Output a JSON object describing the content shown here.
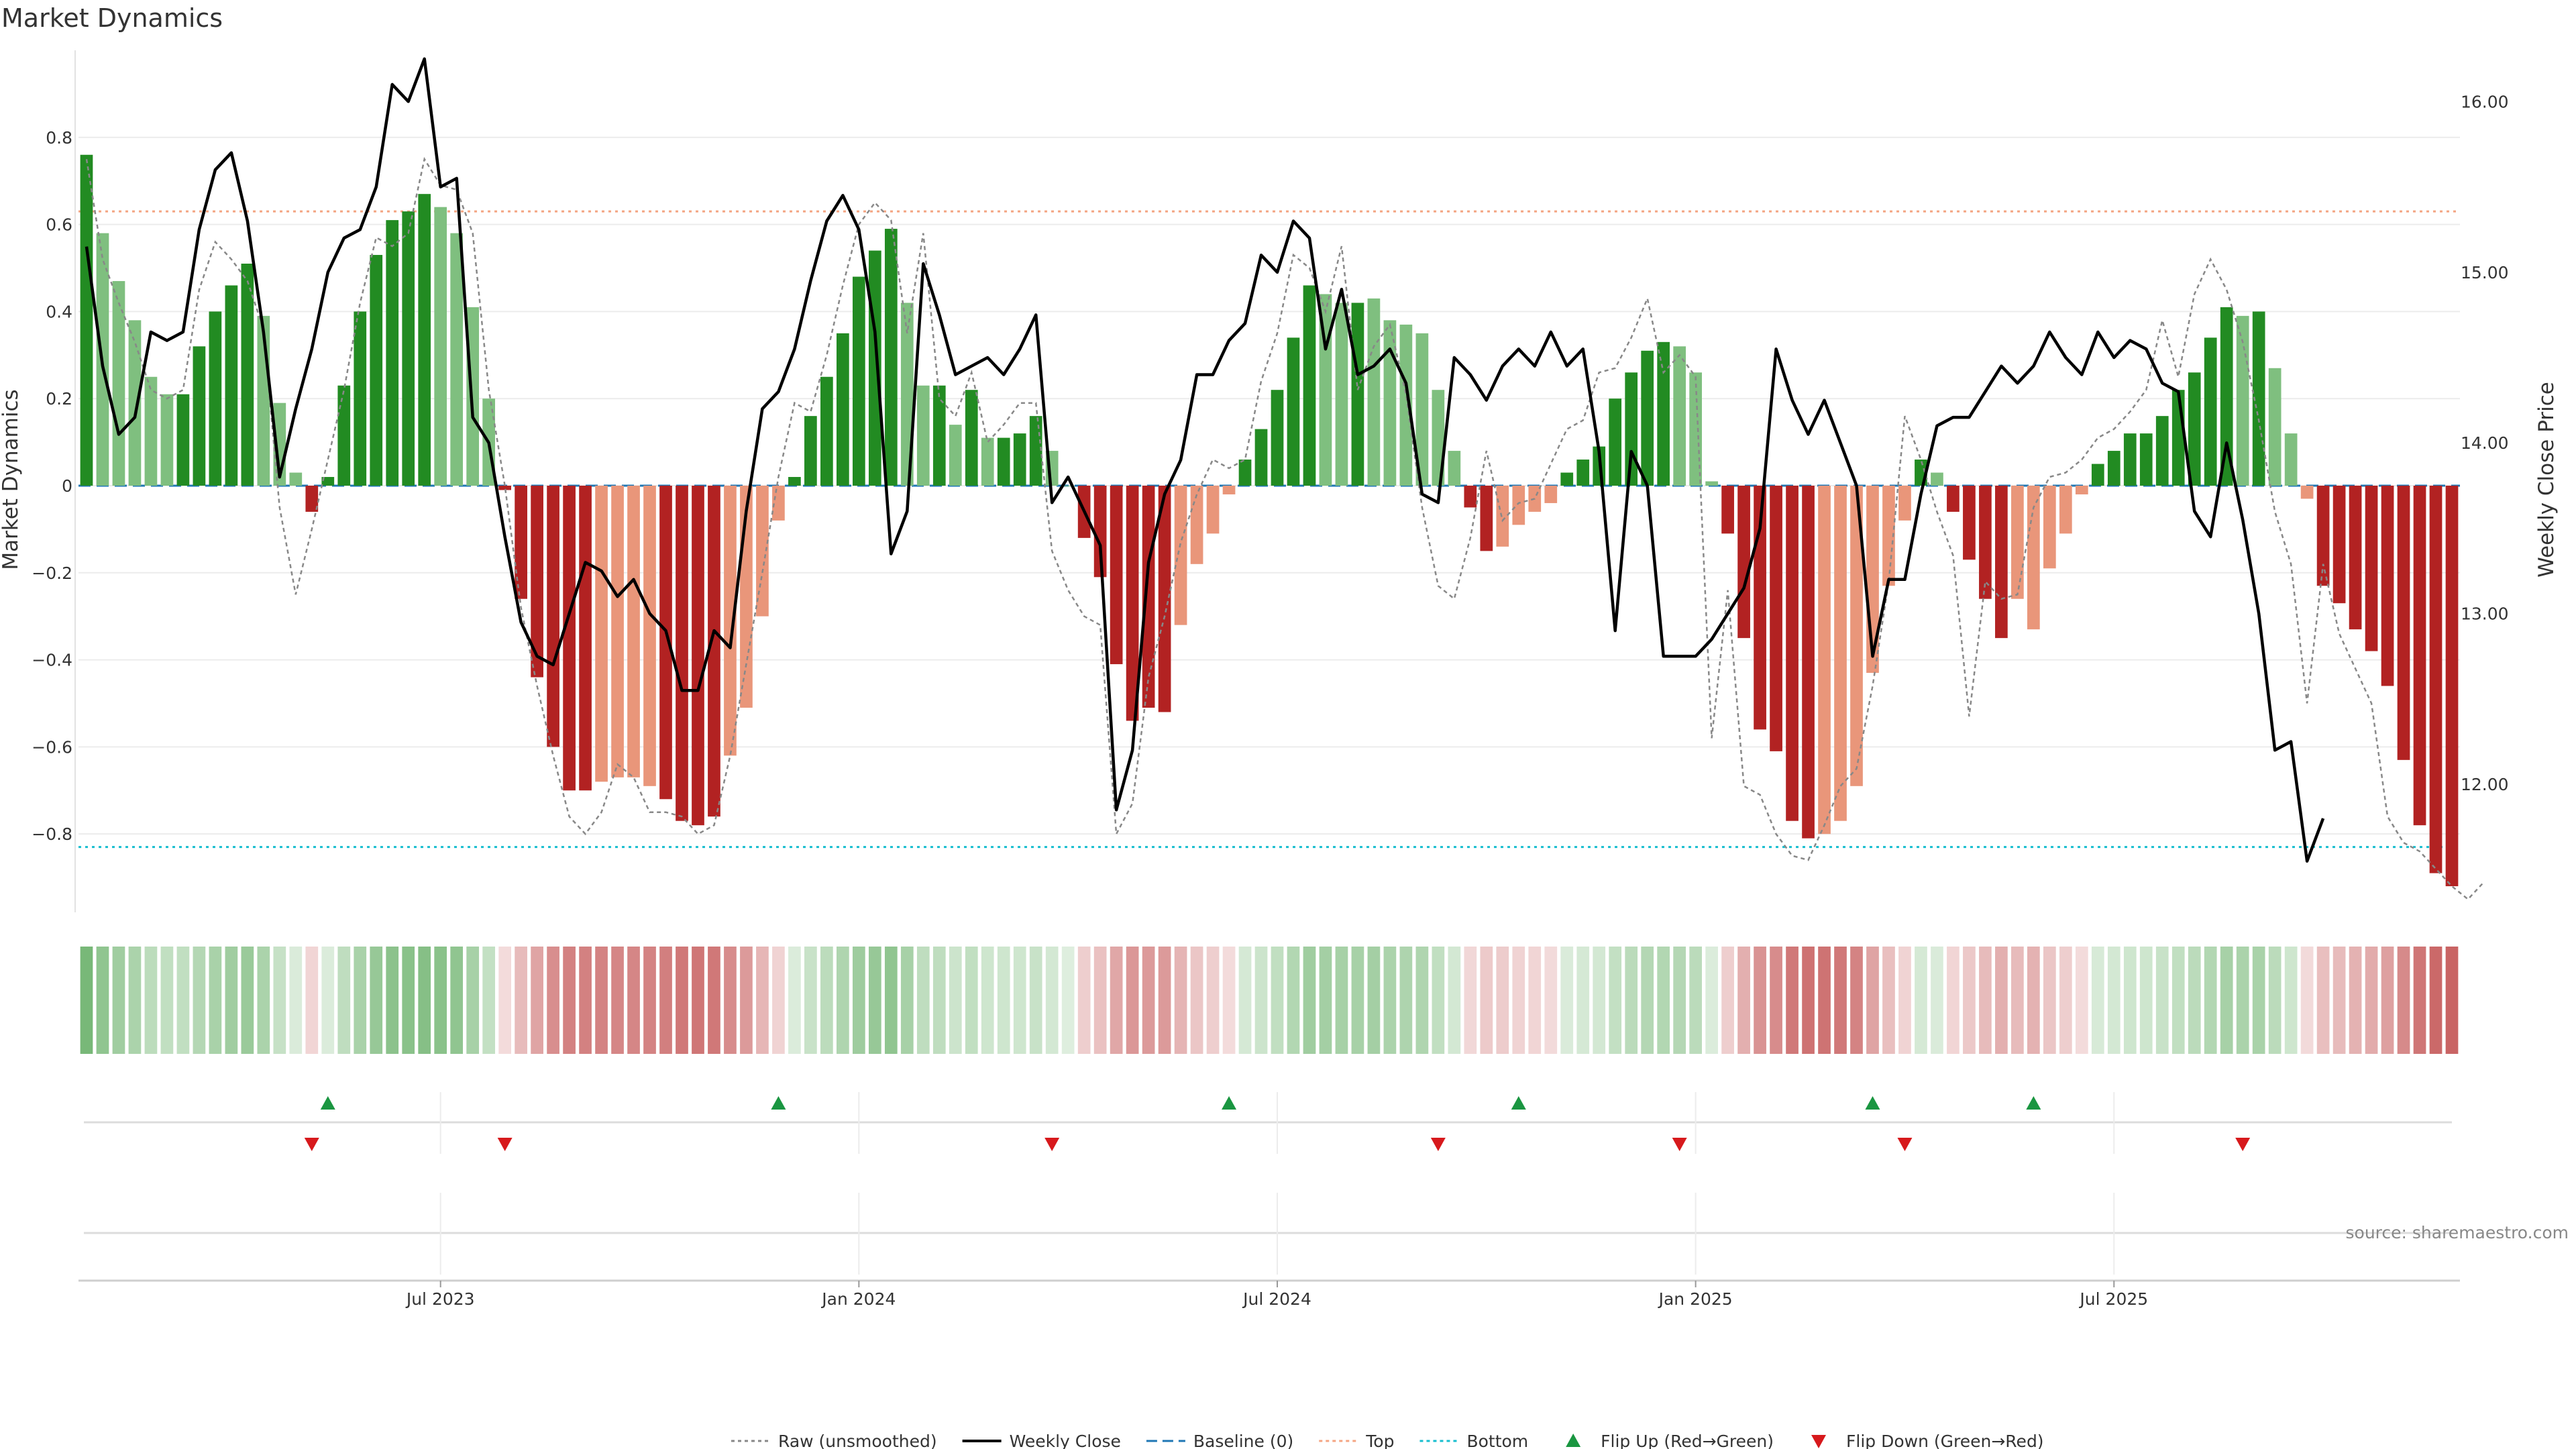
{
  "chart_data": {
    "type": "bar",
    "title": "Market Dynamics",
    "ylabel": "Market Dynamics",
    "y2label": "Weekly Close Price",
    "source": "source: sharemaestro.com",
    "ylim": [
      -0.98,
      1.0
    ],
    "y2lim": [
      11.25,
      16.3
    ],
    "yticks": [
      0.8,
      0.6,
      0.4,
      0.2,
      0,
      -0.2,
      -0.4,
      -0.6,
      -0.8
    ],
    "ytick_labels": [
      "0.8",
      "0.6",
      "0.4",
      "0.2",
      "0",
      "−0.2",
      "−0.4",
      "−0.6",
      "−0.8"
    ],
    "y2ticks": [
      16.0,
      15.0,
      14.0,
      13.0,
      12.0
    ],
    "y2tick_labels": [
      "16.00",
      "15.00",
      "14.00",
      "13.00",
      "12.00"
    ],
    "xtick_labels": [
      "Jul 2023",
      "Jan 2024",
      "Jul 2024",
      "Jan 2025",
      "Jul 2025"
    ],
    "xtick_index": [
      22,
      48,
      74,
      100,
      126
    ],
    "top_line": 0.63,
    "bottom_line": -0.83,
    "grid": true,
    "legend_position": "bottom-center",
    "colors": {
      "strong_up": "#228b22",
      "weak_up": "#7fbf7f",
      "strong_down": "#b22222",
      "weak_down": "#e9967a",
      "raw": "#888888",
      "close": "#000000",
      "baseline": "#1f77b4",
      "top": "#f4a582",
      "bottom": "#17becf",
      "flip_up": "#1a9641",
      "flip_down": "#d7191c"
    },
    "series_values": [
      0.76,
      0.58,
      0.47,
      0.38,
      0.25,
      0.21,
      0.21,
      0.32,
      0.4,
      0.46,
      0.51,
      0.39,
      0.19,
      0.03,
      -0.06,
      0.02,
      0.23,
      0.4,
      0.53,
      0.61,
      0.63,
      0.67,
      0.64,
      0.58,
      0.41,
      0.2,
      -0.01,
      -0.26,
      -0.44,
      -0.6,
      -0.7,
      -0.7,
      -0.68,
      -0.67,
      -0.67,
      -0.69,
      -0.72,
      -0.77,
      -0.78,
      -0.76,
      -0.62,
      -0.51,
      -0.3,
      -0.08,
      0.02,
      0.16,
      0.25,
      0.35,
      0.48,
      0.54,
      0.59,
      0.42,
      0.23,
      0.23,
      0.14,
      0.22,
      0.11,
      0.11,
      0.12,
      0.16,
      0.08,
      0.0,
      -0.12,
      -0.21,
      -0.41,
      -0.54,
      -0.51,
      -0.52,
      -0.32,
      -0.18,
      -0.11,
      -0.02,
      0.06,
      0.13,
      0.22,
      0.34,
      0.46,
      0.44,
      0.42,
      0.42,
      0.43,
      0.38,
      0.37,
      0.35,
      0.22,
      0.08,
      -0.05,
      -0.15,
      -0.14,
      -0.09,
      -0.06,
      -0.04,
      0.03,
      0.06,
      0.09,
      0.2,
      0.26,
      0.31,
      0.33,
      0.32,
      0.26,
      0.01,
      -0.11,
      -0.35,
      -0.56,
      -0.61,
      -0.77,
      -0.81,
      -0.8,
      -0.77,
      -0.69,
      -0.43,
      -0.23,
      -0.08,
      0.06,
      0.03,
      -0.06,
      -0.17,
      -0.26,
      -0.35,
      -0.26,
      -0.33,
      -0.19,
      -0.11,
      -0.02,
      0.05,
      0.08,
      0.12,
      0.12,
      0.16,
      0.22,
      0.26,
      0.34,
      0.41,
      0.39,
      0.4,
      0.27,
      0.12,
      -0.03,
      -0.23,
      -0.27,
      -0.33,
      -0.38,
      -0.46,
      -0.63,
      -0.78,
      -0.89,
      -0.92
    ],
    "series_styles": [
      "s",
      "w",
      "w",
      "w",
      "w",
      "w",
      "s",
      "s",
      "s",
      "s",
      "s",
      "w",
      "w",
      "w",
      "s",
      "s",
      "s",
      "s",
      "s",
      "s",
      "s",
      "s",
      "w",
      "w",
      "w",
      "w",
      "s",
      "s",
      "s",
      "s",
      "s",
      "s",
      "w",
      "w",
      "w",
      "w",
      "s",
      "s",
      "s",
      "s",
      "w",
      "w",
      "w",
      "w",
      "s",
      "s",
      "s",
      "s",
      "s",
      "s",
      "s",
      "w",
      "w",
      "s",
      "w",
      "s",
      "w",
      "s",
      "s",
      "s",
      "w",
      "w",
      "s",
      "s",
      "s",
      "s",
      "s",
      "s",
      "w",
      "w",
      "w",
      "w",
      "s",
      "s",
      "s",
      "s",
      "s",
      "w",
      "w",
      "s",
      "w",
      "w",
      "w",
      "w",
      "w",
      "w",
      "s",
      "s",
      "w",
      "w",
      "w",
      "w",
      "s",
      "s",
      "s",
      "s",
      "s",
      "s",
      "s",
      "w",
      "w",
      "w",
      "s",
      "s",
      "s",
      "s",
      "s",
      "s",
      "w",
      "w",
      "w",
      "w",
      "w",
      "w",
      "s",
      "w",
      "s",
      "s",
      "s",
      "s",
      "w",
      "w",
      "w",
      "w",
      "w",
      "s",
      "s",
      "s",
      "s",
      "s",
      "s",
      "s",
      "s",
      "s",
      "w",
      "s",
      "w",
      "w",
      "w",
      "s",
      "s",
      "s",
      "s",
      "s",
      "s",
      "s",
      "s",
      "s",
      "s"
    ],
    "raw_values": [
      0.75,
      0.52,
      0.42,
      0.33,
      0.22,
      0.2,
      0.22,
      0.45,
      0.56,
      0.52,
      0.47,
      0.36,
      -0.05,
      -0.25,
      -0.1,
      0.06,
      0.22,
      0.42,
      0.57,
      0.55,
      0.58,
      0.75,
      0.69,
      0.68,
      0.58,
      0.22,
      0.0,
      -0.28,
      -0.46,
      -0.62,
      -0.76,
      -0.8,
      -0.75,
      -0.64,
      -0.67,
      -0.75,
      -0.75,
      -0.76,
      -0.8,
      -0.78,
      -0.62,
      -0.41,
      -0.2,
      0.02,
      0.19,
      0.17,
      0.3,
      0.46,
      0.6,
      0.65,
      0.61,
      0.35,
      0.58,
      0.2,
      0.16,
      0.26,
      0.1,
      0.14,
      0.19,
      0.19,
      -0.15,
      -0.24,
      -0.3,
      -0.32,
      -0.8,
      -0.73,
      -0.44,
      -0.3,
      -0.13,
      -0.02,
      0.06,
      0.04,
      0.06,
      0.24,
      0.35,
      0.53,
      0.5,
      0.4,
      0.55,
      0.22,
      0.32,
      0.37,
      0.21,
      -0.05,
      -0.23,
      -0.26,
      -0.12,
      0.08,
      -0.08,
      -0.04,
      -0.03,
      0.05,
      0.13,
      0.15,
      0.26,
      0.27,
      0.34,
      0.43,
      0.26,
      0.3,
      0.25,
      -0.58,
      -0.24,
      -0.69,
      -0.71,
      -0.8,
      -0.85,
      -0.86,
      -0.78,
      -0.69,
      -0.65,
      -0.46,
      -0.22,
      0.16,
      0.06,
      -0.06,
      -0.16,
      -0.53,
      -0.22,
      -0.26,
      -0.25,
      -0.05,
      0.02,
      0.03,
      0.06,
      0.11,
      0.13,
      0.17,
      0.22,
      0.38,
      0.25,
      0.44,
      0.52,
      0.45,
      0.33,
      0.15,
      -0.06,
      -0.18,
      -0.5,
      -0.18,
      -0.34,
      -0.42,
      -0.5,
      -0.76,
      -0.82,
      -0.84,
      -0.88,
      -0.92,
      -0.95,
      -0.91
    ],
    "close_values": [
      15.15,
      14.45,
      14.05,
      14.15,
      14.65,
      14.6,
      14.65,
      15.25,
      15.6,
      15.7,
      15.3,
      14.65,
      13.8,
      14.2,
      14.55,
      15.0,
      15.2,
      15.25,
      15.5,
      16.1,
      16.0,
      16.25,
      15.5,
      15.55,
      14.15,
      14.0,
      13.45,
      12.95,
      12.75,
      12.7,
      13.0,
      13.3,
      13.25,
      13.1,
      13.2,
      13.0,
      12.9,
      12.55,
      12.55,
      12.9,
      12.8,
      13.6,
      14.2,
      14.3,
      14.55,
      14.95,
      15.3,
      15.45,
      15.25,
      14.65,
      13.35,
      13.6,
      15.05,
      14.75,
      14.4,
      14.45,
      14.5,
      14.4,
      14.55,
      14.75,
      13.65,
      13.8,
      13.6,
      13.4,
      11.85,
      12.2,
      13.3,
      13.7,
      13.9,
      14.4,
      14.4,
      14.6,
      14.7,
      15.1,
      15.0,
      15.3,
      15.2,
      14.55,
      14.9,
      14.4,
      14.45,
      14.55,
      14.35,
      13.7,
      13.65,
      14.5,
      14.4,
      14.25,
      14.45,
      14.55,
      14.45,
      14.65,
      14.45,
      14.55,
      13.95,
      12.9,
      13.95,
      13.75,
      12.75,
      12.75,
      12.75,
      12.85,
      13.0,
      13.15,
      13.5,
      14.55,
      14.25,
      14.05,
      14.25,
      14.0,
      13.75,
      12.75,
      13.2,
      13.2,
      13.7,
      14.1,
      14.15,
      14.15,
      14.3,
      14.45,
      14.35,
      14.45,
      14.65,
      14.5,
      14.4,
      14.65,
      14.5,
      14.6,
      14.55,
      14.35,
      14.3,
      13.6,
      13.45,
      14.0,
      13.55,
      13.0,
      12.2,
      12.25,
      11.55,
      11.8
    ],
    "strip_values": [
      0.76,
      0.58,
      0.47,
      0.38,
      0.25,
      0.21,
      0.21,
      0.32,
      0.4,
      0.46,
      0.51,
      0.39,
      0.19,
      0.03,
      -0.06,
      0.02,
      0.23,
      0.4,
      0.53,
      0.61,
      0.63,
      0.67,
      0.64,
      0.58,
      0.41,
      0.2,
      -0.01,
      -0.26,
      -0.44,
      -0.6,
      -0.7,
      -0.7,
      -0.68,
      -0.67,
      -0.67,
      -0.69,
      -0.72,
      -0.77,
      -0.78,
      -0.76,
      -0.62,
      -0.51,
      -0.3,
      -0.08,
      0.02,
      0.16,
      0.25,
      0.35,
      0.48,
      0.54,
      0.59,
      0.42,
      0.23,
      0.23,
      0.14,
      0.22,
      0.11,
      0.11,
      0.12,
      0.16,
      0.08,
      0.0,
      -0.12,
      -0.21,
      -0.41,
      -0.54,
      -0.51,
      -0.52,
      -0.32,
      -0.18,
      -0.11,
      -0.02,
      0.06,
      0.13,
      0.22,
      0.34,
      0.46,
      0.44,
      0.42,
      0.42,
      0.43,
      0.38,
      0.37,
      0.35,
      0.22,
      0.08,
      -0.05,
      -0.15,
      -0.14,
      -0.09,
      -0.06,
      -0.04,
      0.03,
      0.06,
      0.09,
      0.2,
      0.26,
      0.31,
      0.33,
      0.32,
      0.26,
      0.01,
      -0.11,
      -0.35,
      -0.56,
      -0.61,
      -0.77,
      -0.81,
      -0.8,
      -0.77,
      -0.69,
      -0.43,
      -0.23,
      -0.08,
      0.06,
      0.03,
      -0.06,
      -0.17,
      -0.26,
      -0.35,
      -0.26,
      -0.33,
      -0.19,
      -0.11,
      -0.02,
      0.05,
      0.08,
      0.12,
      0.12,
      0.16,
      0.22,
      0.26,
      0.34,
      0.41,
      0.39,
      0.4,
      0.27,
      0.12,
      -0.03,
      -0.23,
      -0.27,
      -0.33,
      -0.38,
      -0.46,
      -0.63,
      -0.78,
      -0.89,
      -0.92
    ],
    "flip_up_index": [
      15,
      43,
      71,
      89,
      111,
      121
    ],
    "flip_down_index": [
      14,
      26,
      60,
      84,
      99,
      113,
      134
    ],
    "legend": [
      {
        "label": "Raw (unsmoothed)",
        "marker": "dotted-line",
        "color": "#888888"
      },
      {
        "label": "Weekly Close",
        "marker": "solid-line",
        "color": "#000000"
      },
      {
        "label": "Baseline (0)",
        "marker": "dashed-line",
        "color": "#1f77b4"
      },
      {
        "label": "Top",
        "marker": "dotted-line",
        "color": "#f4a582"
      },
      {
        "label": "Bottom",
        "marker": "dotted-line",
        "color": "#17becf"
      },
      {
        "label": "Flip Up (Red→Green)",
        "marker": "triangle-up",
        "color": "#1a9641"
      },
      {
        "label": "Flip Down (Green→Red)",
        "marker": "triangle-down",
        "color": "#d7191c"
      }
    ]
  }
}
